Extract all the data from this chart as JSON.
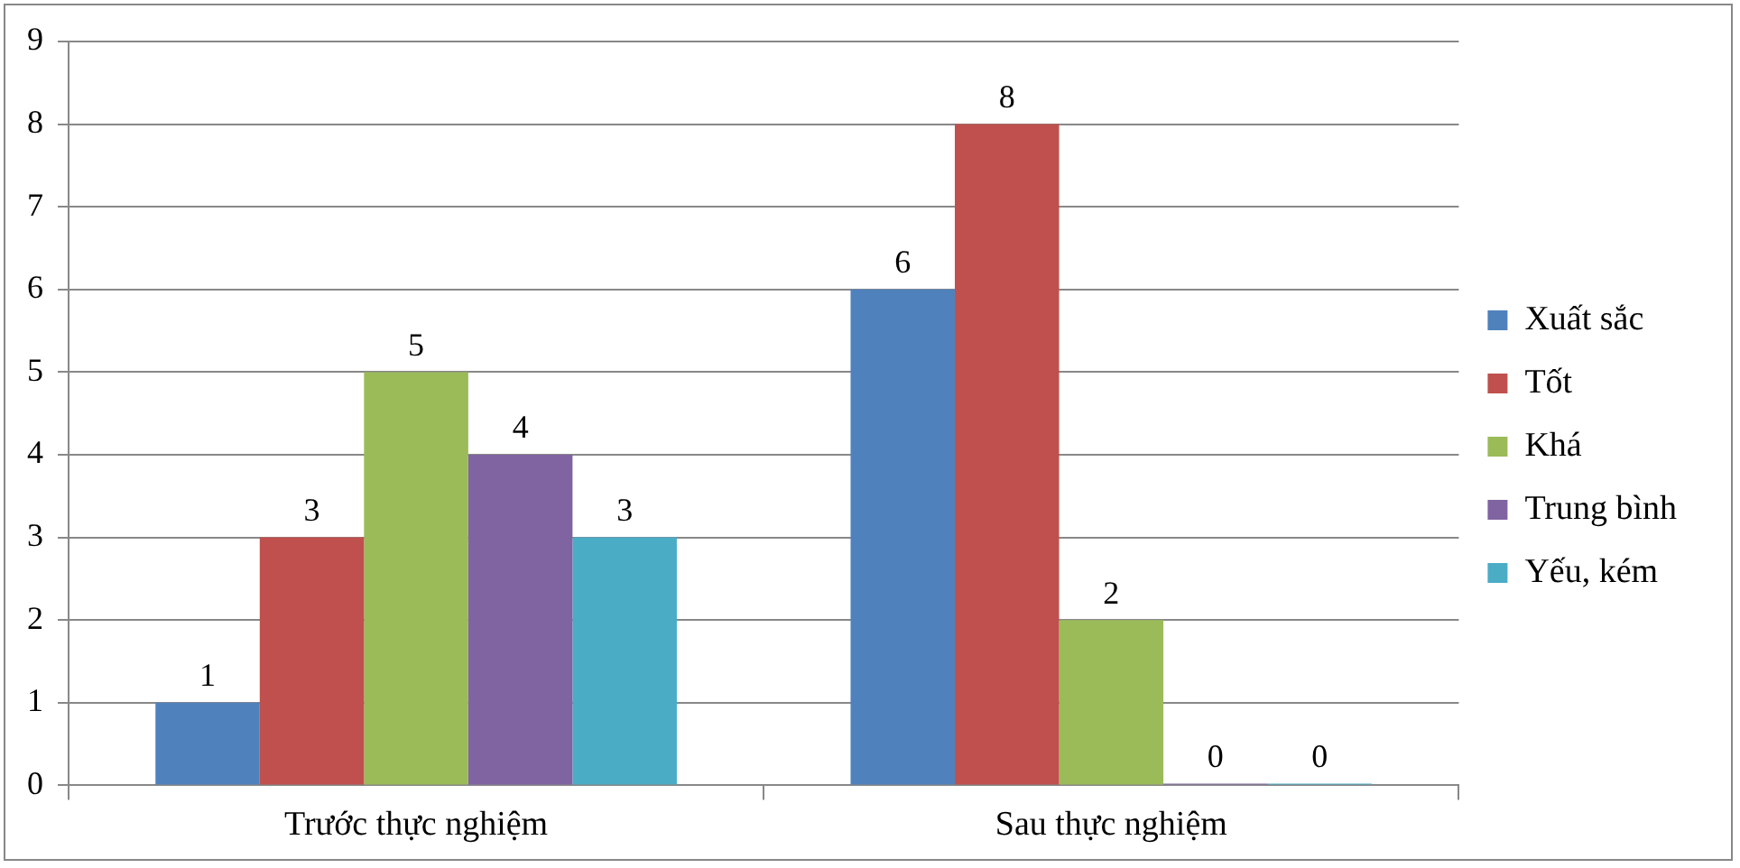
{
  "chart_data": {
    "type": "bar",
    "categories": [
      "Trước thực nghiệm",
      "Sau thực nghiệm"
    ],
    "series": [
      {
        "name": "Xuất sắc",
        "color": "#4f81bd",
        "values": [
          1,
          6
        ]
      },
      {
        "name": "Tốt",
        "color": "#c0504d",
        "values": [
          3,
          8
        ]
      },
      {
        "name": "Khá",
        "color": "#9bbb59",
        "values": [
          5,
          2
        ]
      },
      {
        "name": "Trung bình",
        "color": "#8064a2",
        "values": [
          4,
          0
        ]
      },
      {
        "name": "Yếu, kém",
        "color": "#4bacc6",
        "values": [
          3,
          0
        ]
      }
    ],
    "ylim": [
      0,
      9
    ],
    "yticks": [
      0,
      1,
      2,
      3,
      4,
      5,
      6,
      7,
      8,
      9
    ],
    "grid": "y",
    "legend": "right",
    "data_labels": true
  }
}
